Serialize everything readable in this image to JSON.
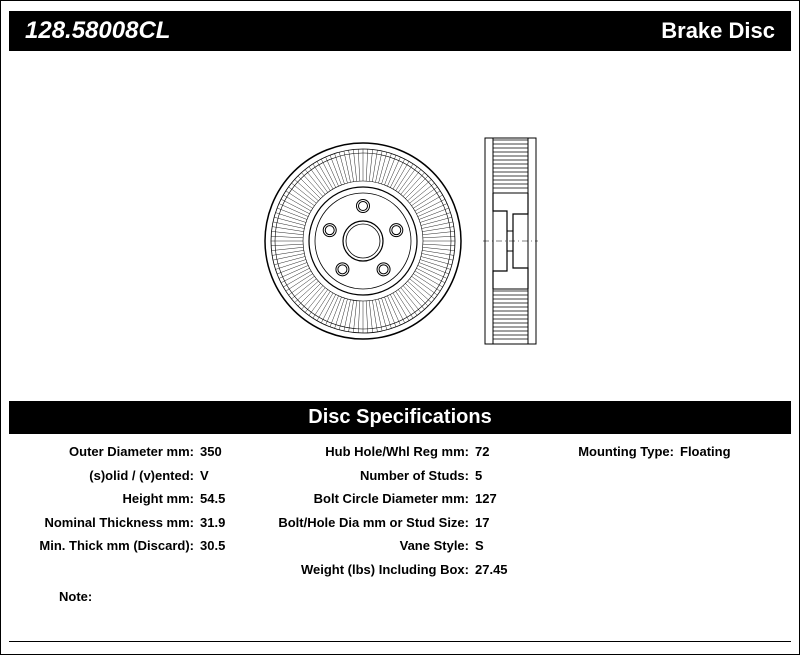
{
  "header": {
    "part_number": "128.58008CL",
    "product_type": "Brake Disc"
  },
  "spec_section_title": "Disc Specifications",
  "specs_col1": [
    {
      "label": "Outer Diameter mm:",
      "value": "350"
    },
    {
      "label": "(s)olid / (v)ented:",
      "value": "V"
    },
    {
      "label": "Height mm:",
      "value": "54.5"
    },
    {
      "label": "Nominal Thickness mm:",
      "value": "31.9"
    },
    {
      "label": "Min. Thick mm (Discard):",
      "value": "30.5"
    }
  ],
  "specs_col2": [
    {
      "label": "Hub Hole/Whl Reg mm:",
      "value": "72"
    },
    {
      "label": "Number of Studs:",
      "value": "5"
    },
    {
      "label": "Bolt Circle Diameter mm:",
      "value": "127"
    },
    {
      "label": "Bolt/Hole Dia mm or Stud Size:",
      "value": "17"
    },
    {
      "label": "Vane Style:",
      "value": "S"
    },
    {
      "label": "Weight (lbs) Including Box:",
      "value": "27.45"
    }
  ],
  "specs_col3": [
    {
      "label": "Mounting Type:",
      "value": "Floating"
    }
  ],
  "note_label": "Note:",
  "diagram": {
    "stroke_color": "#000000",
    "fill_color": "#ffffff",
    "bolt_count": 5
  }
}
